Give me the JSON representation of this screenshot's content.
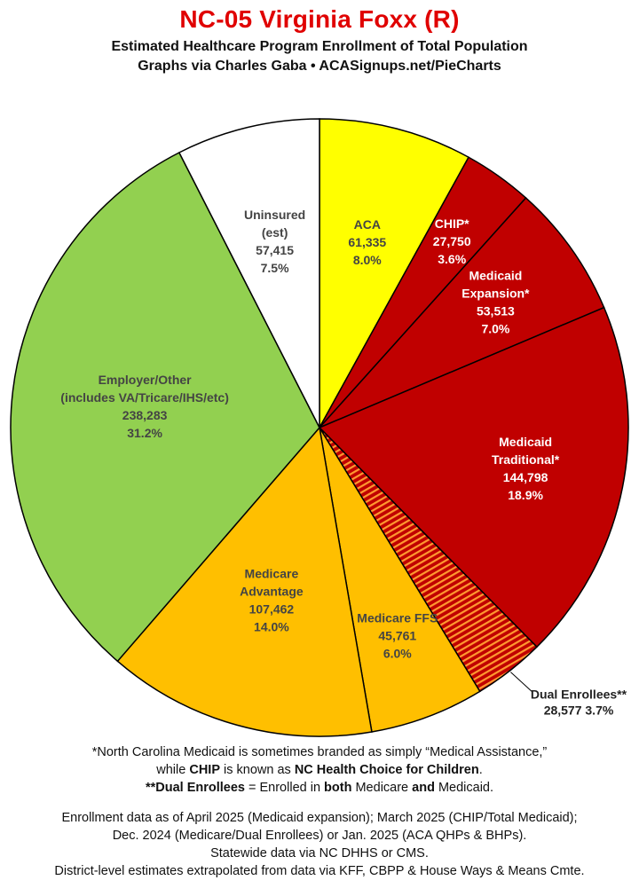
{
  "header": {
    "title": "NC-05 Virginia Foxx (R)",
    "subtitle": "Estimated Healthcare Program Enrollment of Total Population",
    "credit": "Graphs via Charles Gaba  •  ACASignups.net/PieCharts"
  },
  "chart_data": {
    "type": "pie",
    "title": "NC-05 Virginia Foxx (R)",
    "start": "12 o'clock",
    "direction": "clockwise",
    "slices": [
      {
        "label": "ACA",
        "lines": [
          "ACA",
          "61,335",
          "8.0%"
        ],
        "value": 61335,
        "percent": 8.0,
        "color": "#ffff00",
        "text_color": "#444444"
      },
      {
        "label": "CHIP*",
        "lines": [
          "CHIP*",
          "27,750",
          "3.6%"
        ],
        "value": 27750,
        "percent": 3.6,
        "color": "#c00000",
        "text_color": "#ffffff"
      },
      {
        "label": "Medicaid Expansion*",
        "lines": [
          "Medicaid",
          "Expansion*",
          "53,513",
          "7.0%"
        ],
        "value": 53513,
        "percent": 7.0,
        "color": "#c00000",
        "text_color": "#ffffff"
      },
      {
        "label": "Medicaid Traditional*",
        "lines": [
          "Medicaid",
          "Traditional*",
          "144,798",
          "18.9%"
        ],
        "value": 144798,
        "percent": 18.9,
        "color": "#c00000",
        "text_color": "#ffffff"
      },
      {
        "label": "Dual Enrollees**",
        "lines": [
          "Dual Enrollees**",
          "28,577 3.7%"
        ],
        "value": 28577,
        "percent": 3.7,
        "color": "#c00000",
        "pattern": "stripes",
        "text_color": "#222222",
        "outside": true
      },
      {
        "label": "Medicare FFS",
        "lines": [
          "Medicare FFS",
          "45,761",
          "6.0%"
        ],
        "value": 45761,
        "percent": 6.0,
        "color": "#ffbf00",
        "text_color": "#444444"
      },
      {
        "label": "Medicare Advantage",
        "lines": [
          "Medicare",
          "Advantage",
          "107,462",
          "14.0%"
        ],
        "value": 107462,
        "percent": 14.0,
        "color": "#ffbf00",
        "text_color": "#444444"
      },
      {
        "label": "Employer/Other (includes VA/Tricare/IHS/etc)",
        "lines": [
          "Employer/Other",
          "(includes VA/Tricare/IHS/etc)",
          "238,283",
          "31.2%"
        ],
        "value": 238283,
        "percent": 31.2,
        "color": "#92d050",
        "text_color": "#444444"
      },
      {
        "label": "Uninsured (est)",
        "lines": [
          "Uninsured",
          "(est)",
          "57,415",
          "7.5%"
        ],
        "value": 57415,
        "percent": 7.5,
        "color": "#ffffff",
        "text_color": "#444444"
      }
    ]
  },
  "notes": {
    "line1": "*North Carolina Medicaid is sometimes branded as simply “Medical Assistance,”",
    "line2_a": "while ",
    "line2_b": "CHIP",
    "line2_c": " is known as ",
    "line2_d": "NC Health Choice for Children",
    "line2_e": ".",
    "line3_a": "**Dual Enrollees",
    "line3_b": " = Enrolled in ",
    "line3_c": "both",
    "line3_d": " Medicare ",
    "line3_e": "and",
    "line3_f": " Medicaid.",
    "line4": "Enrollment data as of April 2025 (Medicaid expansion); March 2025 (CHIP/Total Medicaid);",
    "line5": "Dec. 2024 (Medicare/Dual Enrollees) or Jan. 2025 (ACA QHPs & BHPs).",
    "line6": "Statewide data via NC DHHS or CMS.",
    "line7": "District-level estimates extrapolated from data via KFF, CBPP & House Ways & Means Cmte."
  }
}
